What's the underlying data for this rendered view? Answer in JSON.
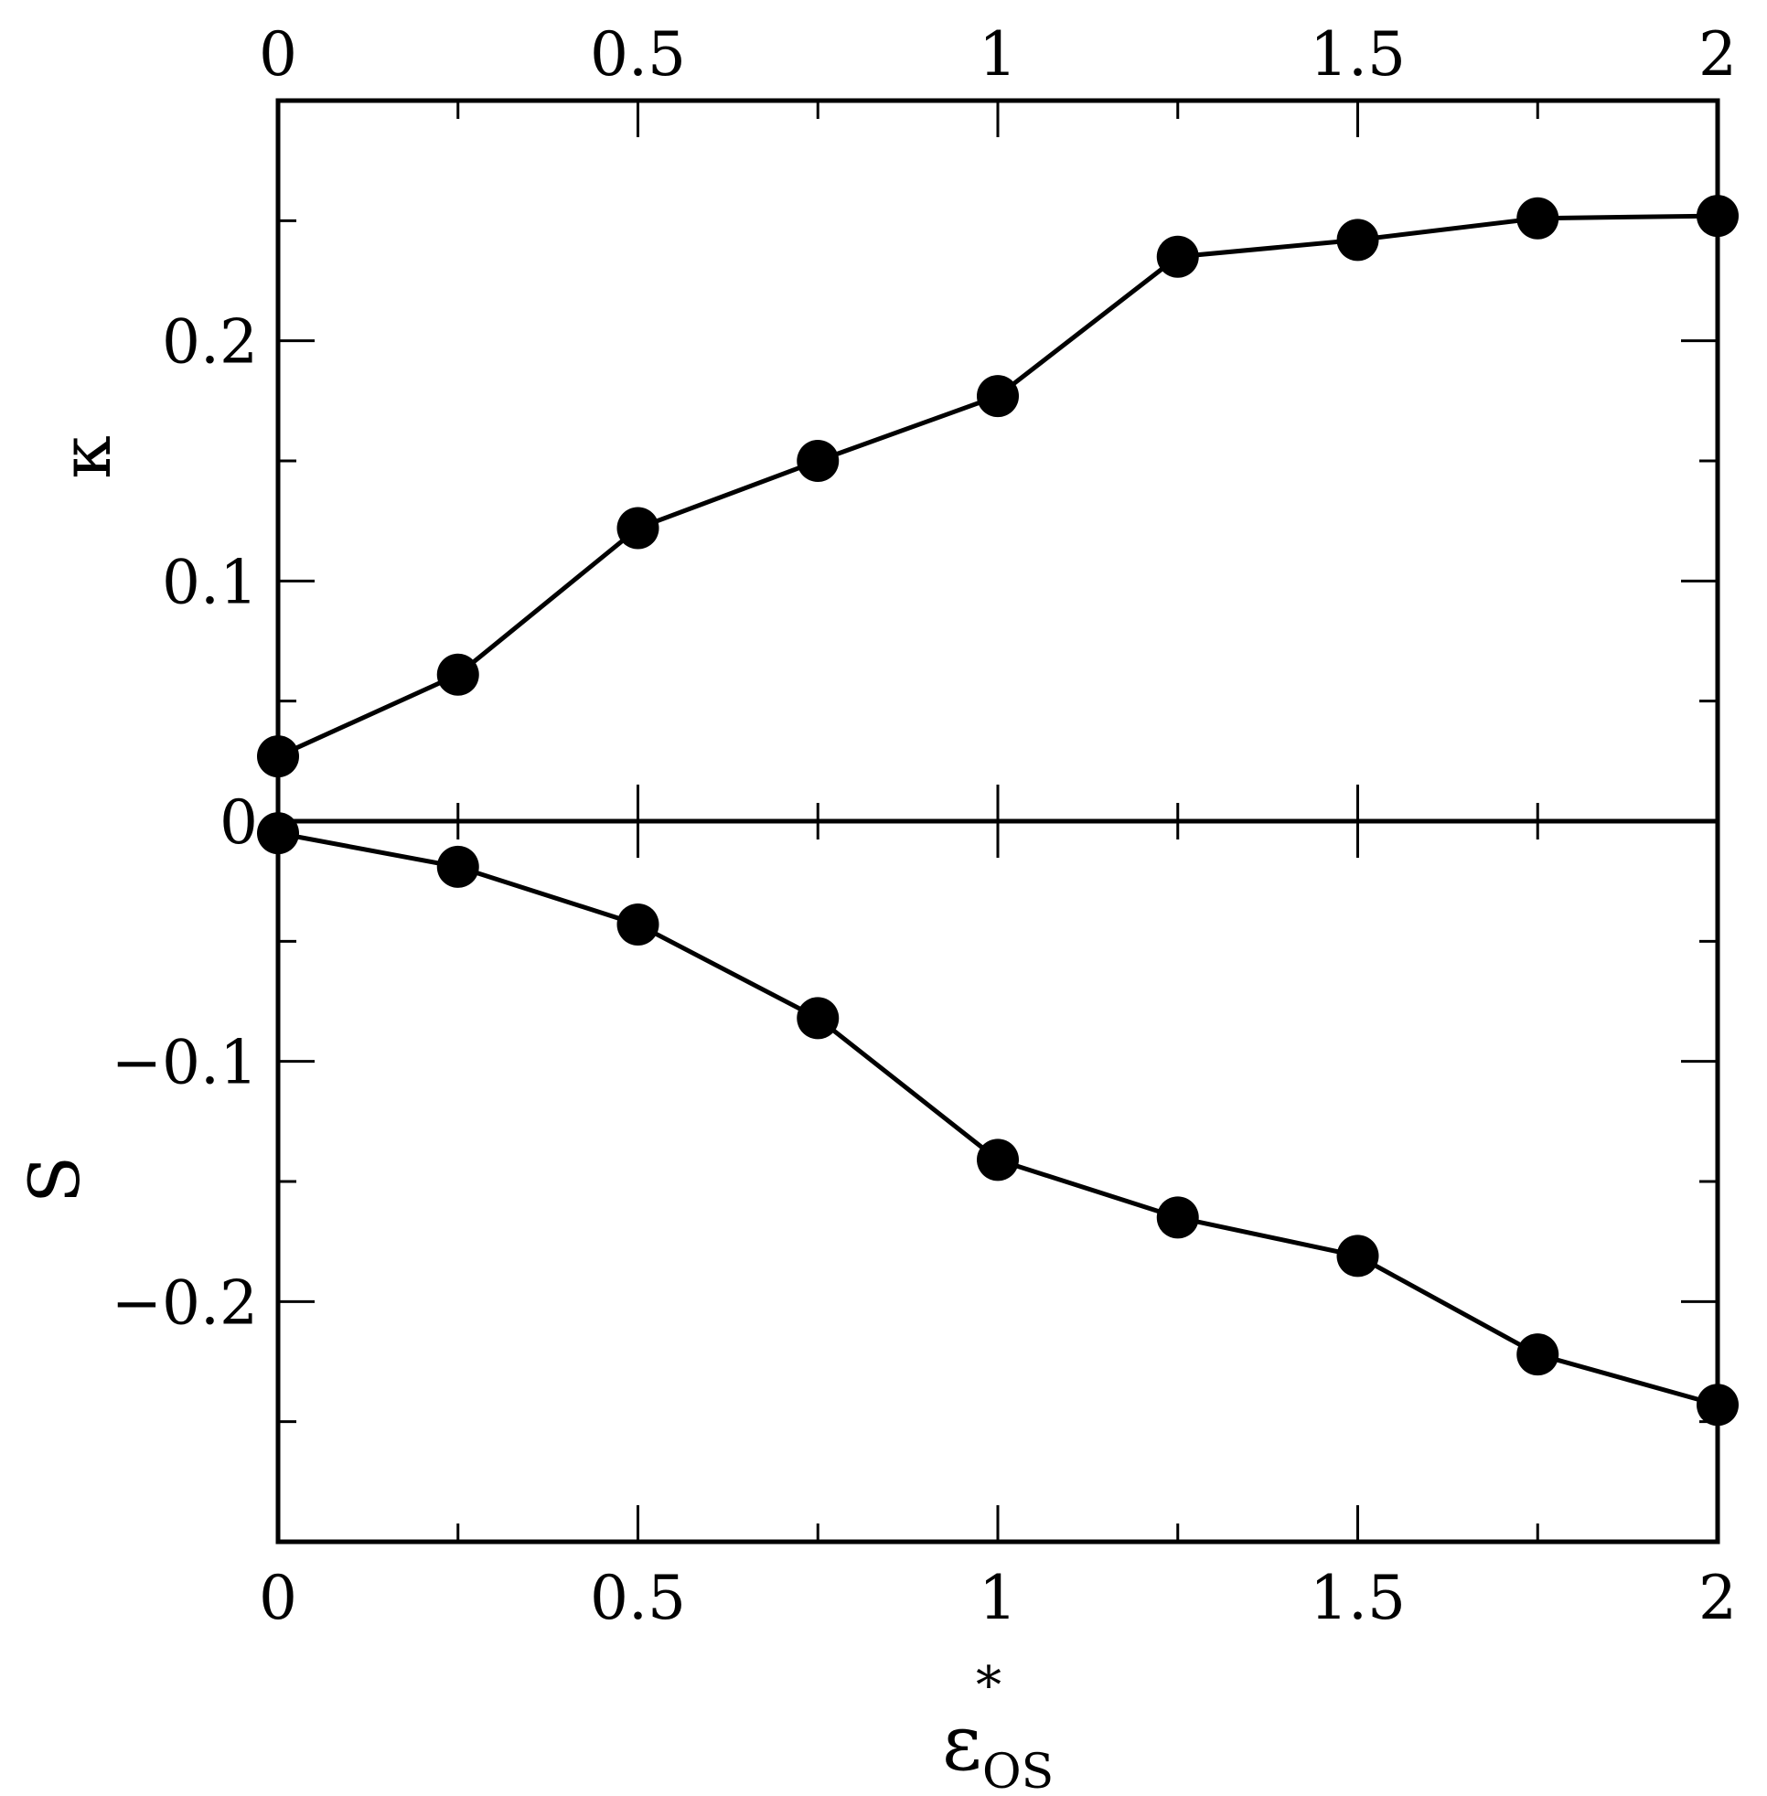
{
  "chart_data": {
    "type": "line",
    "xlim": [
      0,
      2
    ],
    "ylim": [
      -0.3,
      0.3
    ],
    "x_ticks": [
      {
        "value": 0,
        "label": "0"
      },
      {
        "value": 0.5,
        "label": "0.5"
      },
      {
        "value": 1,
        "label": "1"
      },
      {
        "value": 1.5,
        "label": "1.5"
      },
      {
        "value": 2,
        "label": "2"
      }
    ],
    "x_minor_ticks": [
      0.25,
      0.75,
      1.25,
      1.75
    ],
    "y_ticks": [
      {
        "value": 0.2,
        "label": "0.2"
      },
      {
        "value": 0.1,
        "label": "0.1"
      },
      {
        "value": 0,
        "label": "0"
      },
      {
        "value": -0.1,
        "label": "−0.1"
      },
      {
        "value": -0.2,
        "label": "−0.2"
      }
    ],
    "y_minor_ticks": [
      0.25,
      0.15,
      0.05,
      -0.05,
      -0.15,
      -0.25
    ],
    "xlabel": {
      "main": "ε",
      "superscript": "*",
      "subscript": "OS"
    },
    "ylabels": {
      "upper": "κ",
      "lower": "S"
    },
    "zero_line": true,
    "grid": false,
    "marker": "filled-circle",
    "x": [
      0,
      0.25,
      0.5,
      0.75,
      1.0,
      1.25,
      1.5,
      1.75,
      2.0
    ],
    "series": [
      {
        "values": [
          0.027,
          0.061,
          0.122,
          0.15,
          0.177,
          0.235,
          0.242,
          0.251,
          0.252
        ]
      },
      {
        "values": [
          -0.005,
          -0.019,
          -0.043,
          -0.082,
          -0.141,
          -0.165,
          -0.181,
          -0.222,
          -0.243
        ]
      }
    ]
  }
}
